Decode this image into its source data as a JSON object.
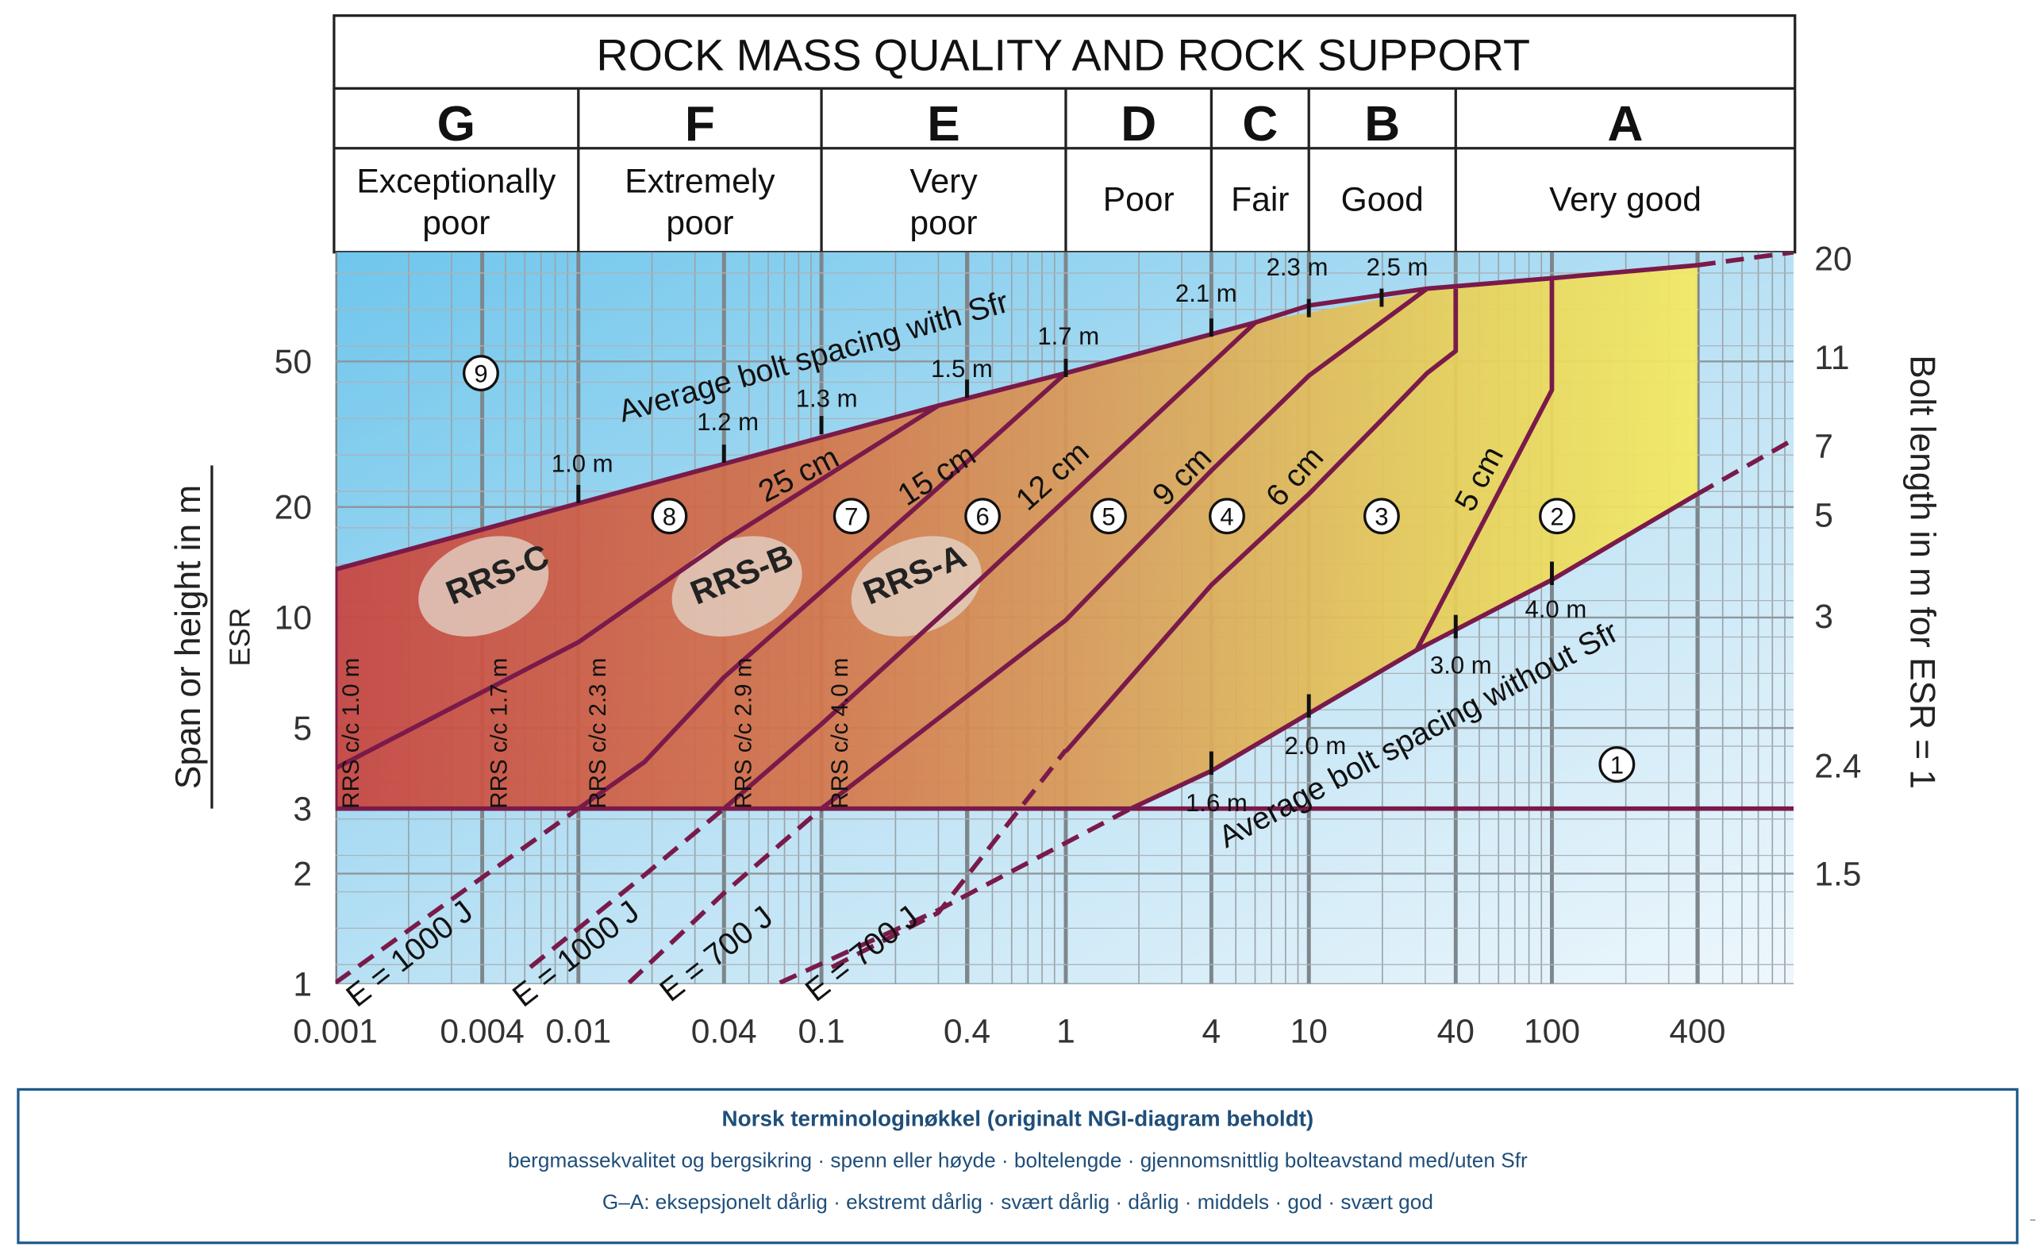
{
  "title": "ROCK MASS QUALITY AND ROCK SUPPORT",
  "classes": [
    {
      "letter": "G",
      "desc": [
        "Exceptionally",
        "poor"
      ]
    },
    {
      "letter": "F",
      "desc": [
        "Extremely",
        "poor"
      ]
    },
    {
      "letter": "E",
      "desc": [
        "Very",
        "poor"
      ]
    },
    {
      "letter": "D",
      "desc": [
        "Poor"
      ]
    },
    {
      "letter": "C",
      "desc": [
        "Fair"
      ]
    },
    {
      "letter": "B",
      "desc": [
        "Good"
      ]
    },
    {
      "letter": "A",
      "desc": [
        "Very good"
      ]
    }
  ],
  "y_left_label": {
    "main": "Span or height in m",
    "sub": "ESR"
  },
  "y_right_label": "Bolt length in m for ESR = 1",
  "x_ticks": [
    "0.001",
    "0.004",
    "0.01",
    "0.04",
    "0.1",
    "0.4",
    "1",
    "4",
    "10",
    "40",
    "100",
    "400"
  ],
  "y_left_ticks": [
    "1",
    "2",
    "3",
    "5",
    "10",
    "20",
    "50"
  ],
  "y_right_ticks": [
    "1.5",
    "2.4",
    "3",
    "5",
    "7",
    "11",
    "20"
  ],
  "upper_line_label": "Average bolt spacing with Sfr",
  "lower_line_label": "Average bolt spacing without Sfr",
  "upper_spacings": [
    "1.0 m",
    "1.2 m",
    "1.3 m",
    "1.5 m",
    "1.7 m",
    "2.1 m",
    "2.3 m",
    "2.5 m"
  ],
  "lower_spacings": [
    "1.6 m",
    "2.0 m",
    "3.0 m",
    "4.0 m"
  ],
  "shotcrete_labels": [
    "25 cm",
    "15 cm",
    "12 cm",
    "9 cm",
    "6 cm",
    "5 cm"
  ],
  "categories": [
    "1",
    "2",
    "3",
    "4",
    "5",
    "6",
    "7",
    "8",
    "9"
  ],
  "rrs_zones": [
    "RRS-C",
    "RRS-B",
    "RRS-A"
  ],
  "rrs_spacings": [
    "RRS  c/c 1.0 m",
    "RRS  c/c 1.7 m",
    "RRS  c/c 2.3 m",
    "RRS  c/c 2.9 m",
    "RRS  c/c 4.0 m"
  ],
  "energy_labels": [
    "E = 1000 J",
    "E = 1000 J",
    "E = 700 J",
    "E = 700 J"
  ],
  "legend": {
    "title": "Norsk terminologinøkkel (originalt NGI-diagram beholdt)",
    "line1": "bergmassekvalitet og bergsikring · spenn eller høyde · boltelengde · gjennomsnittlig bolteavstand med/uten Sfr",
    "line2": "G–A: eksepsjonelt dårlig · ekstremt dårlig · svært dårlig · dårlig · middels · god · svært god"
  },
  "colors": {
    "curve": "#7a1a4a",
    "border": "#222222",
    "legend_border": "#1f5b8c"
  }
}
